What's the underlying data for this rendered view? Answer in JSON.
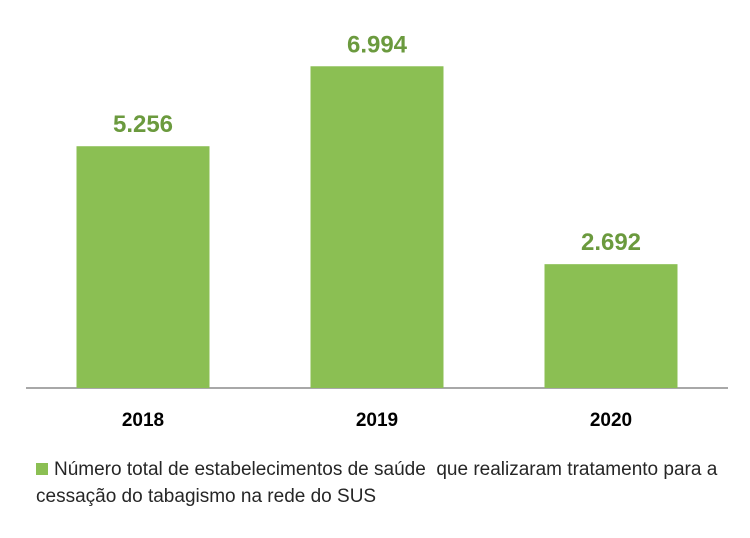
{
  "colors": {
    "bar": "#8BBF53",
    "value_label": "#6B9A3E",
    "category_label": "#000000",
    "axis": "#8C8C8C"
  },
  "chart_data": {
    "type": "bar",
    "categories": [
      "2018",
      "2019",
      "2020"
    ],
    "series": [
      {
        "name": "Número total de estabelecimentos de saúde  que realizaram tratamento para a cessação do tabagismo na rede do SUS",
        "values": [
          5256,
          6994,
          2692
        ],
        "value_labels": [
          "5.256",
          "6.994",
          "2.692"
        ]
      }
    ],
    "ylim": [
      0,
      8000
    ],
    "grid": false,
    "legend_position": "bottom-left"
  }
}
